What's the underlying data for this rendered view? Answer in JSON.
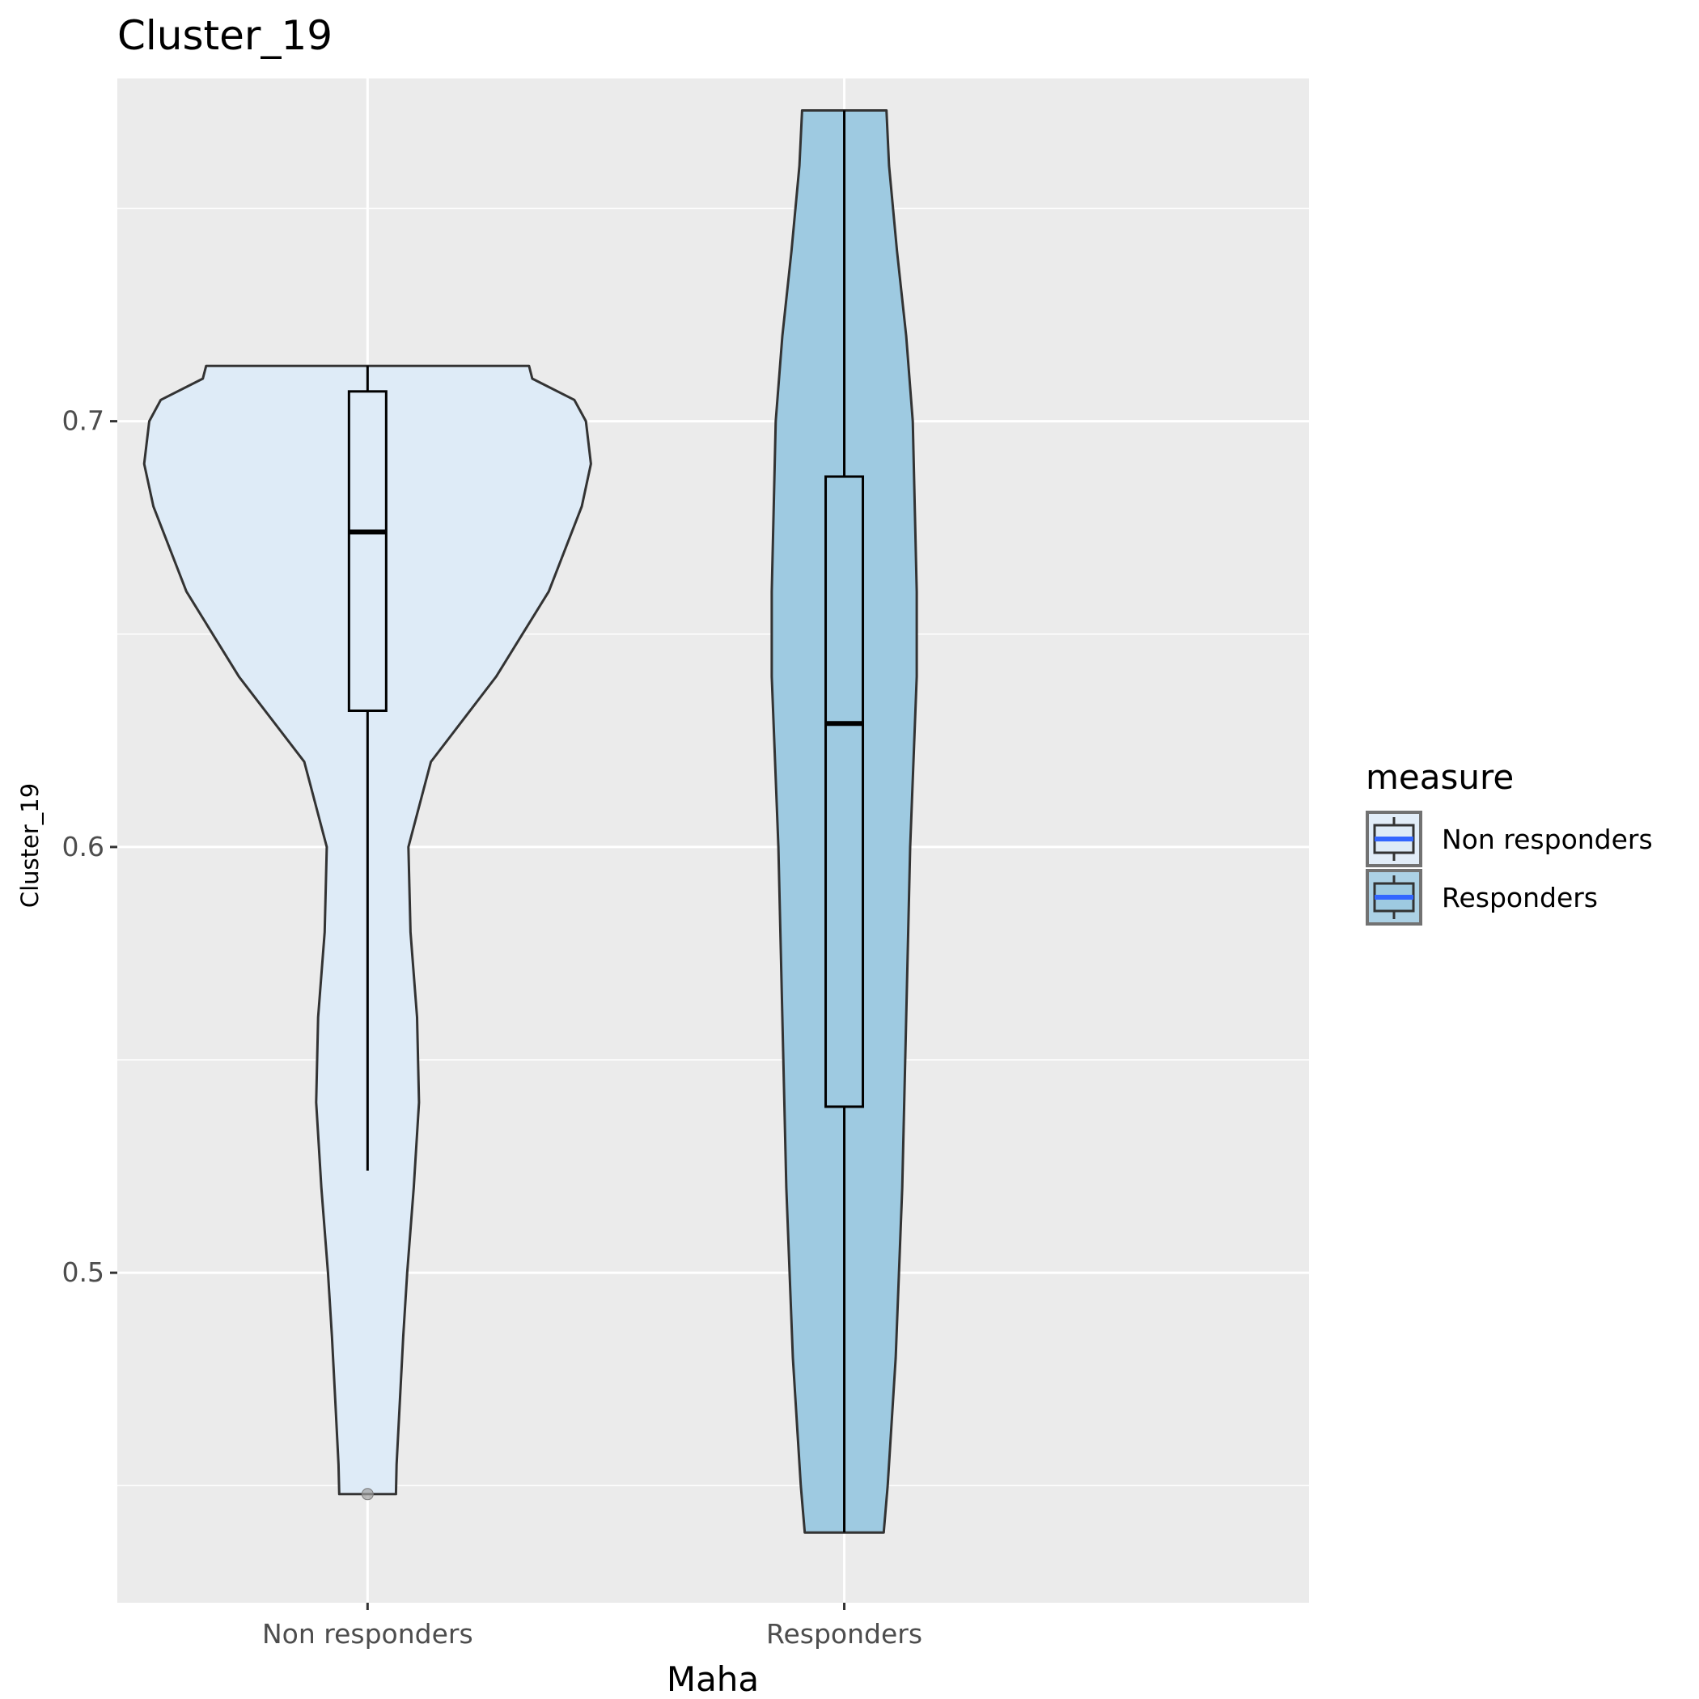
{
  "chart_data": {
    "type": "violin",
    "title": "Cluster_19",
    "xlabel": "Maha",
    "ylabel": "Cluster_19",
    "ylim": [
      0.4225,
      0.7805
    ],
    "yticks": [
      0.5,
      0.6,
      0.7
    ],
    "ytick_labels": [
      "0.5",
      "0.6",
      "0.7"
    ],
    "grid": true,
    "legend": {
      "title": "measure",
      "position": "right",
      "entries": [
        "Non responders",
        "Responders"
      ]
    },
    "categories": [
      "Non responders",
      "Responders"
    ],
    "series": [
      {
        "name": "Non responders",
        "fill": "#deebf7",
        "min": 0.448,
        "max": 0.713,
        "box": {
          "q1": 0.632,
          "median": 0.674,
          "q3": 0.707,
          "whisker_low": 0.524,
          "whisker_high": 0.713
        },
        "outliers": [
          0.448
        ],
        "violin": [
          [
            0.448,
            0.0207
          ],
          [
            0.455,
            0.0212
          ],
          [
            0.47,
            0.0236
          ],
          [
            0.485,
            0.026
          ],
          [
            0.5,
            0.0289
          ],
          [
            0.52,
            0.0337
          ],
          [
            0.54,
            0.0375
          ],
          [
            0.56,
            0.0361
          ],
          [
            0.58,
            0.0313
          ],
          [
            0.6,
            0.0298
          ],
          [
            0.62,
            0.0462
          ],
          [
            0.64,
            0.0938
          ],
          [
            0.66,
            0.1322
          ],
          [
            0.68,
            0.1563
          ],
          [
            0.69,
            0.163
          ],
          [
            0.7,
            0.1593
          ],
          [
            0.705,
            0.1509
          ],
          [
            0.71,
            0.1202
          ],
          [
            0.713,
            0.1178
          ]
        ]
      },
      {
        "name": "Responders",
        "fill": "#9ecae1",
        "min": 0.439,
        "max": 0.773,
        "box": {
          "q1": 0.539,
          "median": 0.629,
          "q3": 0.687,
          "whisker_low": 0.439,
          "whisker_high": 0.773
        },
        "outliers": [],
        "violin": [
          [
            0.439,
            0.0288
          ],
          [
            0.45,
            0.0317
          ],
          [
            0.48,
            0.0375
          ],
          [
            0.52,
            0.0423
          ],
          [
            0.56,
            0.0452
          ],
          [
            0.6,
            0.0481
          ],
          [
            0.64,
            0.0529
          ],
          [
            0.66,
            0.0529
          ],
          [
            0.7,
            0.05
          ],
          [
            0.72,
            0.0452
          ],
          [
            0.74,
            0.0385
          ],
          [
            0.76,
            0.0327
          ],
          [
            0.773,
            0.0308
          ]
        ]
      }
    ]
  }
}
